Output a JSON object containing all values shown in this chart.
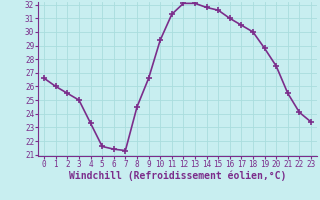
{
  "x": [
    0,
    1,
    2,
    3,
    4,
    5,
    6,
    7,
    8,
    9,
    10,
    11,
    12,
    13,
    14,
    15,
    16,
    17,
    18,
    19,
    20,
    21,
    22,
    23
  ],
  "y": [
    26.6,
    26.0,
    25.5,
    25.0,
    23.3,
    21.6,
    21.4,
    21.3,
    24.5,
    26.6,
    29.4,
    31.3,
    32.1,
    32.1,
    31.8,
    31.6,
    31.0,
    30.5,
    30.0,
    28.8,
    27.5,
    25.5,
    24.1,
    23.4
  ],
  "line_color": "#7b2d8b",
  "marker": "+",
  "marker_size": 4,
  "bg_color": "#c8eef0",
  "grid_color": "#aadddd",
  "xlabel": "Windchill (Refroidissement éolien,°C)",
  "xlabel_color": "#7b2d8b",
  "tick_color": "#7b2d8b",
  "ylim": [
    21,
    32
  ],
  "xlim": [
    -0.5,
    23.5
  ],
  "yticks": [
    21,
    22,
    23,
    24,
    25,
    26,
    27,
    28,
    29,
    30,
    31,
    32
  ],
  "xticks": [
    0,
    1,
    2,
    3,
    4,
    5,
    6,
    7,
    8,
    9,
    10,
    11,
    12,
    13,
    14,
    15,
    16,
    17,
    18,
    19,
    20,
    21,
    22,
    23
  ],
  "tick_fontsize": 5.5,
  "xlabel_fontsize": 7.0,
  "linewidth": 1.2
}
